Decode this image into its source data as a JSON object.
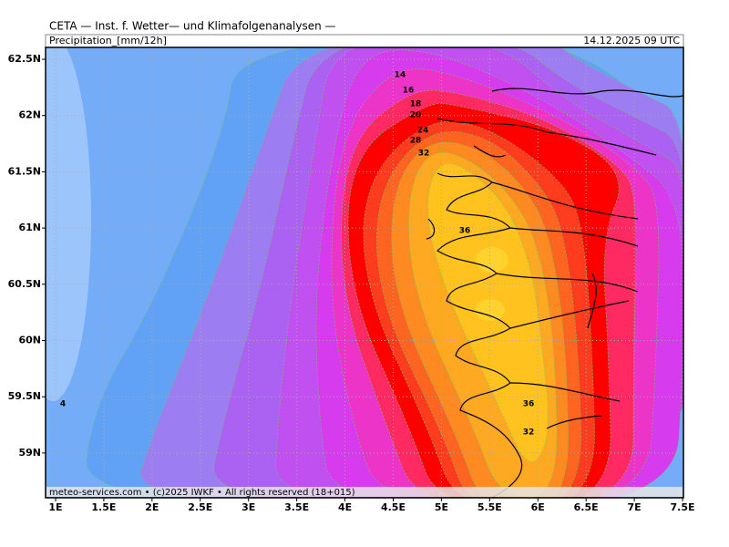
{
  "header": {
    "title": "CETA — Inst. f. Wetter— und Klimafolgenanalysen —",
    "product": "Precipitation_[mm/12h]",
    "valid_time": "14.12.2025 09 UTC"
  },
  "footer": {
    "credit": "meteo-services.com • (c)2025 IWKF • All rights reserved (18+015)"
  },
  "axes": {
    "x_ticks": [
      {
        "value": 1,
        "label": "1E"
      },
      {
        "value": 1.5,
        "label": "1.5E"
      },
      {
        "value": 2,
        "label": "2E"
      },
      {
        "value": 2.5,
        "label": "2.5E"
      },
      {
        "value": 3,
        "label": "3E"
      },
      {
        "value": 3.5,
        "label": "3.5E"
      },
      {
        "value": 4,
        "label": "4E"
      },
      {
        "value": 4.5,
        "label": "4.5E"
      },
      {
        "value": 5,
        "label": "5E"
      },
      {
        "value": 5.5,
        "label": "5.5E"
      },
      {
        "value": 6,
        "label": "6E"
      },
      {
        "value": 6.5,
        "label": "6.5E"
      },
      {
        "value": 7,
        "label": "7E"
      },
      {
        "value": 7.5,
        "label": "7.5E"
      }
    ],
    "y_ticks": [
      {
        "value": 62.5,
        "label": "62.5N"
      },
      {
        "value": 62,
        "label": "62N"
      },
      {
        "value": 61.5,
        "label": "61.5N"
      },
      {
        "value": 61,
        "label": "61N"
      },
      {
        "value": 60.5,
        "label": "60.5N"
      },
      {
        "value": 60,
        "label": "60N"
      },
      {
        "value": 59.5,
        "label": "59.5N"
      },
      {
        "value": 59,
        "label": "59N"
      }
    ]
  },
  "contour_labels": [
    "14",
    "16",
    "18",
    "20",
    "24",
    "28",
    "32",
    "36",
    "36",
    "32",
    "4"
  ]
}
